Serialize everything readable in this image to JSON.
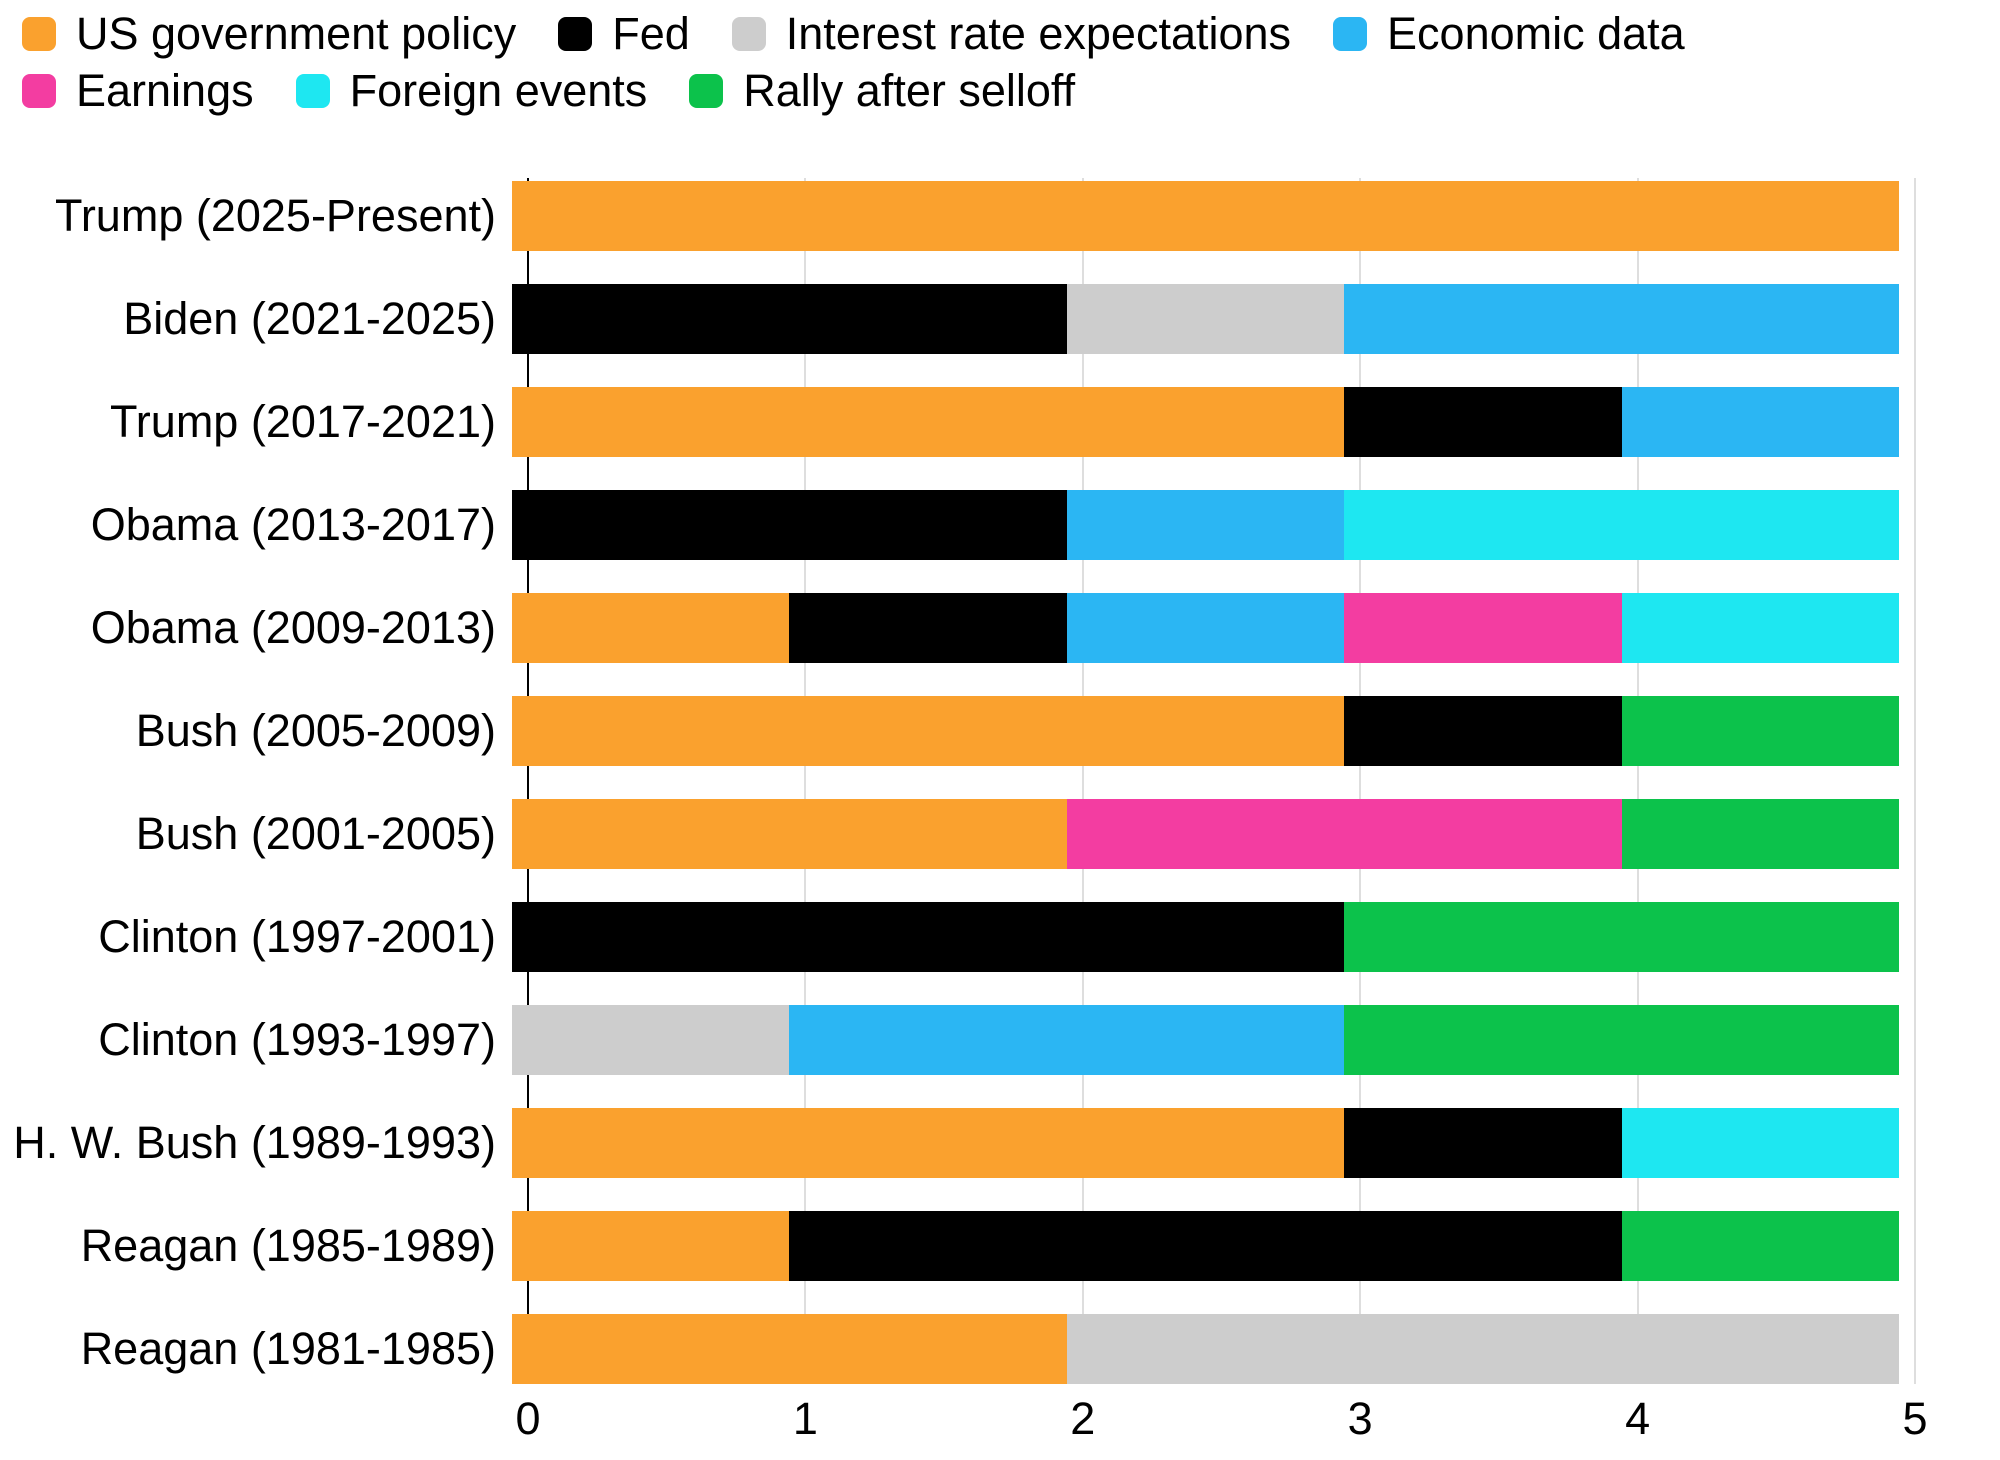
{
  "chart_data": {
    "type": "bar",
    "variant": "horizontal_stacked",
    "title": "",
    "legend_position": "top",
    "grid": "vertical",
    "xlim": [
      0,
      5
    ],
    "x_ticks": [
      "0",
      "1",
      "2",
      "3",
      "4",
      "5"
    ],
    "gridline_color": "#dedede",
    "axis_line_color": "#000000",
    "legend": [
      {
        "name": "US government policy",
        "color": "#faa12e"
      },
      {
        "name": "Fed",
        "color": "#000000"
      },
      {
        "name": "Interest rate expectations",
        "color": "#cdcdcd"
      },
      {
        "name": "Economic data",
        "color": "#2bb6f3"
      },
      {
        "name": "Earnings",
        "color": "#f33da1"
      },
      {
        "name": "Foreign events",
        "color": "#1ee7f1"
      },
      {
        "name": "Rally after selloff",
        "color": "#0cc24b"
      }
    ],
    "rows": [
      {
        "label": "Trump (2025-Present)",
        "segments": [
          {
            "cause": "US government policy",
            "value": 5
          }
        ]
      },
      {
        "label": "Biden (2021-2025)",
        "segments": [
          {
            "cause": "Fed",
            "value": 2
          },
          {
            "cause": "Interest rate expectations",
            "value": 1
          },
          {
            "cause": "Economic data",
            "value": 2
          }
        ]
      },
      {
        "label": "Trump (2017-2021)",
        "segments": [
          {
            "cause": "US government policy",
            "value": 3
          },
          {
            "cause": "Fed",
            "value": 1
          },
          {
            "cause": "Economic data",
            "value": 1
          }
        ]
      },
      {
        "label": "Obama (2013-2017)",
        "segments": [
          {
            "cause": "Fed",
            "value": 2
          },
          {
            "cause": "Economic data",
            "value": 1
          },
          {
            "cause": "Foreign events",
            "value": 2
          }
        ]
      },
      {
        "label": "Obama (2009-2013)",
        "segments": [
          {
            "cause": "US government policy",
            "value": 1
          },
          {
            "cause": "Fed",
            "value": 1
          },
          {
            "cause": "Economic data",
            "value": 1
          },
          {
            "cause": "Earnings",
            "value": 1
          },
          {
            "cause": "Foreign events",
            "value": 1
          }
        ]
      },
      {
        "label": "Bush (2005-2009)",
        "segments": [
          {
            "cause": "US government policy",
            "value": 3
          },
          {
            "cause": "Fed",
            "value": 1
          },
          {
            "cause": "Rally after selloff",
            "value": 1
          }
        ]
      },
      {
        "label": "Bush (2001-2005)",
        "segments": [
          {
            "cause": "US government policy",
            "value": 2
          },
          {
            "cause": "Earnings",
            "value": 2
          },
          {
            "cause": "Rally after selloff",
            "value": 1
          }
        ]
      },
      {
        "label": "Clinton (1997-2001)",
        "segments": [
          {
            "cause": "Fed",
            "value": 3
          },
          {
            "cause": "Rally after selloff",
            "value": 2
          }
        ]
      },
      {
        "label": "Clinton (1993-1997)",
        "segments": [
          {
            "cause": "Interest rate expectations",
            "value": 1
          },
          {
            "cause": "Economic data",
            "value": 2
          },
          {
            "cause": "Rally after selloff",
            "value": 2
          }
        ]
      },
      {
        "label": "H. W. Bush (1989-1993)",
        "segments": [
          {
            "cause": "US government policy",
            "value": 3
          },
          {
            "cause": "Fed",
            "value": 1
          },
          {
            "cause": "Foreign events",
            "value": 1
          }
        ]
      },
      {
        "label": "Reagan (1985-1989)",
        "segments": [
          {
            "cause": "US government policy",
            "value": 1
          },
          {
            "cause": "Fed",
            "value": 3
          },
          {
            "cause": "Rally after selloff",
            "value": 1
          }
        ]
      },
      {
        "label": "Reagan (1981-1985)",
        "segments": [
          {
            "cause": "US government policy",
            "value": 2
          },
          {
            "cause": "Interest rate expectations",
            "value": 3
          }
        ]
      }
    ]
  }
}
